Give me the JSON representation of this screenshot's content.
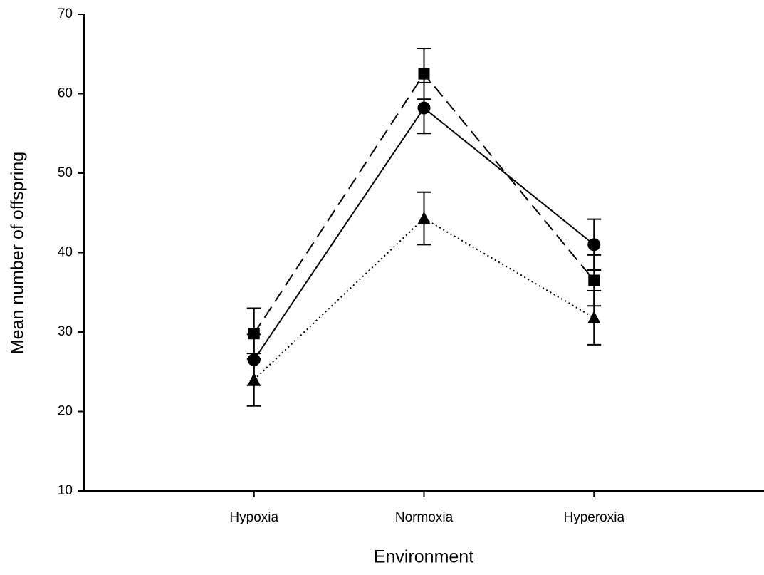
{
  "chart_data": {
    "type": "line",
    "y_label": "Mean number of offspring",
    "x_label": "Environment",
    "categories": [
      "Hypoxia",
      "Normoxia",
      "Hyperoxia"
    ],
    "series": [
      {
        "color": "#000000",
        "marker": "square",
        "dash": "dashed",
        "values": [
          29.8,
          62.5,
          36.5
        ],
        "errors": [
          3.2,
          3.2,
          3.2
        ]
      },
      {
        "color": "#000000",
        "marker": "circle",
        "dash": "solid",
        "values": [
          26.5,
          58.2,
          41.0
        ],
        "errors": [
          3.2,
          3.2,
          3.2
        ]
      },
      {
        "color": "#000000",
        "marker": "triangle",
        "dash": "dotted",
        "values": [
          24.0,
          44.3,
          31.8
        ],
        "errors": [
          3.3,
          3.3,
          3.4
        ]
      }
    ],
    "ylim": [
      10,
      70
    ],
    "yticks": [
      10,
      20,
      30,
      40,
      50,
      60,
      70
    ],
    "grid": false
  }
}
